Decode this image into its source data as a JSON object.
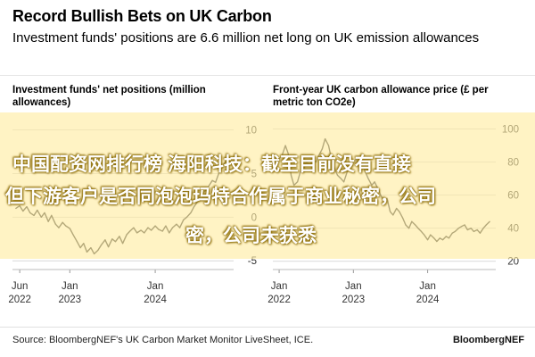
{
  "header": {
    "title": "Record Bullish Bets on UK Carbon",
    "subtitle": "Investment funds' positions are 6.6 million net long on UK emission allowances"
  },
  "overlay": {
    "line1": "中国配资网排行榜 海阳科技：截至目前没有直接",
    "line2": "但下游客户是否同泡泡玛特合作属于商业秘密，公司",
    "line3": "密，公司未获悉"
  },
  "footer": {
    "source": "Source: BloombergNEF's UK Carbon Market Monitor LiveSheet, ICE.",
    "brand": "BloombergNEF"
  },
  "colors": {
    "series": "#3a3a3a",
    "grid": "#d9d9d9",
    "tick_text": "#333333"
  },
  "chart_data": [
    {
      "type": "line",
      "title": "Investment funds' net positions (million allowances)",
      "xlabel": "",
      "ylabel": "",
      "yaxis_side": "right",
      "ylim": [
        -6,
        12
      ],
      "yticks": [
        -5,
        0,
        5,
        10
      ],
      "xlim": [
        "2022-05-01",
        "2024-12-01"
      ],
      "xticks": [
        {
          "date": "2022-06-01",
          "label1": "Jun",
          "label2": "2022"
        },
        {
          "date": "2023-01-01",
          "label1": "Jan",
          "label2": "2023"
        },
        {
          "date": "2024-01-01",
          "label1": "Jan",
          "label2": "2024"
        }
      ],
      "series": [
        {
          "x": [
            "2022-05-15",
            "2022-06-01",
            "2022-06-15",
            "2022-07-01",
            "2022-07-15",
            "2022-08-01",
            "2022-08-15",
            "2022-09-01",
            "2022-09-15",
            "2022-10-01",
            "2022-10-15",
            "2022-11-01",
            "2022-11-15",
            "2022-12-01",
            "2022-12-15",
            "2023-01-01",
            "2023-01-15",
            "2023-02-01",
            "2023-02-15",
            "2023-03-01",
            "2023-03-15",
            "2023-04-01",
            "2023-04-15",
            "2023-05-01",
            "2023-05-15",
            "2023-06-01",
            "2023-06-15",
            "2023-07-01",
            "2023-07-15",
            "2023-08-01",
            "2023-08-15",
            "2023-09-01",
            "2023-09-15",
            "2023-10-01",
            "2023-10-15",
            "2023-11-01",
            "2023-11-15",
            "2023-12-01",
            "2023-12-15",
            "2024-01-01",
            "2024-01-15",
            "2024-02-01",
            "2024-02-15",
            "2024-03-01",
            "2024-03-15",
            "2024-04-01",
            "2024-04-15",
            "2024-05-01",
            "2024-05-15",
            "2024-06-01",
            "2024-06-15",
            "2024-07-01",
            "2024-07-15",
            "2024-08-01",
            "2024-08-15",
            "2024-09-01",
            "2024-09-15",
            "2024-10-01",
            "2024-10-15",
            "2024-11-01"
          ],
          "values": [
            1.0,
            1.3,
            0.7,
            1.2,
            0.5,
            0.2,
            0.8,
            0.0,
            0.5,
            -0.5,
            0.2,
            -0.8,
            -1.2,
            -0.6,
            -1.0,
            -1.3,
            -2.0,
            -2.8,
            -3.5,
            -3.0,
            -4.0,
            -3.5,
            -4.2,
            -3.8,
            -3.2,
            -2.6,
            -3.4,
            -2.5,
            -2.8,
            -2.2,
            -3.0,
            -2.0,
            -1.6,
            -1.2,
            -1.8,
            -1.5,
            -1.8,
            -1.2,
            -1.5,
            -1.0,
            -1.4,
            -1.6,
            -1.0,
            -1.8,
            -1.2,
            -0.8,
            -1.2,
            -0.3,
            0.0,
            0.5,
            1.2,
            1.8,
            2.6,
            3.0,
            3.5,
            4.2,
            4.0,
            5.2,
            5.8,
            6.6
          ]
        }
      ]
    },
    {
      "type": "line",
      "title": "Front-year UK carbon allowance price (£ per metric ton CO2e)",
      "xlabel": "",
      "ylabel": "",
      "yaxis_side": "right",
      "ylim": [
        15,
        110
      ],
      "yticks": [
        20,
        40,
        60,
        80,
        100
      ],
      "xlim": [
        "2021-12-01",
        "2024-12-01"
      ],
      "xticks": [
        {
          "date": "2022-01-01",
          "label1": "Jan",
          "label2": "2022"
        },
        {
          "date": "2023-01-01",
          "label1": "Jan",
          "label2": "2023"
        },
        {
          "date": "2024-01-01",
          "label1": "Jan",
          "label2": "2024"
        }
      ],
      "series": [
        {
          "x": [
            "2021-12-15",
            "2022-01-01",
            "2022-01-15",
            "2022-02-01",
            "2022-02-15",
            "2022-03-01",
            "2022-03-15",
            "2022-04-01",
            "2022-04-15",
            "2022-05-01",
            "2022-05-15",
            "2022-06-01",
            "2022-06-15",
            "2022-07-01",
            "2022-07-15",
            "2022-08-01",
            "2022-08-15",
            "2022-09-01",
            "2022-09-15",
            "2022-10-01",
            "2022-10-15",
            "2022-11-01",
            "2022-11-15",
            "2022-12-01",
            "2022-12-15",
            "2023-01-01",
            "2023-01-15",
            "2023-02-01",
            "2023-02-15",
            "2023-03-01",
            "2023-03-15",
            "2023-04-01",
            "2023-04-15",
            "2023-05-01",
            "2023-05-15",
            "2023-06-01",
            "2023-06-15",
            "2023-07-01",
            "2023-07-15",
            "2023-08-01",
            "2023-08-15",
            "2023-09-01",
            "2023-09-15",
            "2023-10-01",
            "2023-10-15",
            "2023-11-01",
            "2023-11-15",
            "2023-12-01",
            "2023-12-15",
            "2024-01-01",
            "2024-01-15",
            "2024-02-01",
            "2024-02-15",
            "2024-03-01",
            "2024-03-15",
            "2024-04-01",
            "2024-04-15",
            "2024-05-01",
            "2024-05-15",
            "2024-06-01",
            "2024-06-15",
            "2024-07-01",
            "2024-07-15",
            "2024-08-01",
            "2024-08-15",
            "2024-09-01",
            "2024-09-15",
            "2024-10-01",
            "2024-10-15",
            "2024-11-01"
          ],
          "values": [
            78,
            82,
            84,
            90,
            85,
            72,
            66,
            68,
            74,
            76,
            80,
            78,
            82,
            80,
            84,
            88,
            94,
            90,
            82,
            76,
            72,
            70,
            68,
            74,
            78,
            80,
            82,
            76,
            78,
            74,
            70,
            66,
            68,
            64,
            60,
            56,
            58,
            50,
            48,
            52,
            50,
            46,
            42,
            40,
            44,
            42,
            40,
            38,
            36,
            33,
            36,
            34,
            32,
            34,
            33,
            35,
            34,
            37,
            38,
            40,
            41,
            42,
            39,
            40,
            38,
            39,
            37,
            40,
            42,
            44
          ]
        }
      ]
    }
  ]
}
